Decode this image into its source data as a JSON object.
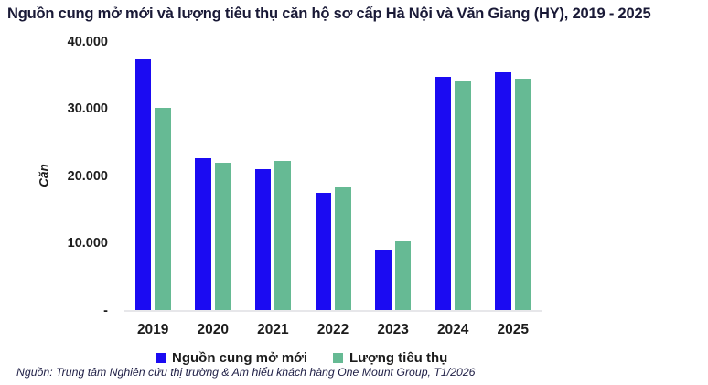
{
  "source": "Nguồn: Trung tâm Nghiên cứu thị trường & Am hiểu khách hàng One Mount Group, T1/2026",
  "colors": {
    "supply_blue": "#1b0bf2",
    "absorption_green": "#66ba94",
    "axis_line": "#e7e7ea",
    "title_text": "#191936",
    "tick_text": "#1d1d1d"
  },
  "chart_data": {
    "type": "bar",
    "title": "Nguồn cung mở mới và lượng tiêu thụ căn hộ sơ cấp Hà Nội và Văn Giang (HY), 2019 - 2025",
    "xlabel": "",
    "ylabel": "Căn",
    "ylim": [
      0,
      40000
    ],
    "grid": false,
    "legend_position": "bottom",
    "y_ticks": [
      {
        "label": "40.000",
        "value": 40000
      },
      {
        "label": "30.000",
        "value": 30000
      },
      {
        "label": "20.000",
        "value": 20000
      },
      {
        "label": "10.000",
        "value": 10000
      },
      {
        "label": "-",
        "value": 0
      }
    ],
    "categories": [
      "2019",
      "2020",
      "2021",
      "2022",
      "2023",
      "2024",
      "2025"
    ],
    "series": [
      {
        "name": "Nguồn cung mở mới",
        "color": "#1b0bf2",
        "values": [
          37500,
          22700,
          21100,
          17500,
          9100,
          34800,
          35400
        ]
      },
      {
        "name": "Lượng tiêu thụ",
        "color": "#66ba94",
        "values": [
          30200,
          22000,
          22300,
          18300,
          10300,
          34100,
          34500
        ]
      }
    ]
  }
}
